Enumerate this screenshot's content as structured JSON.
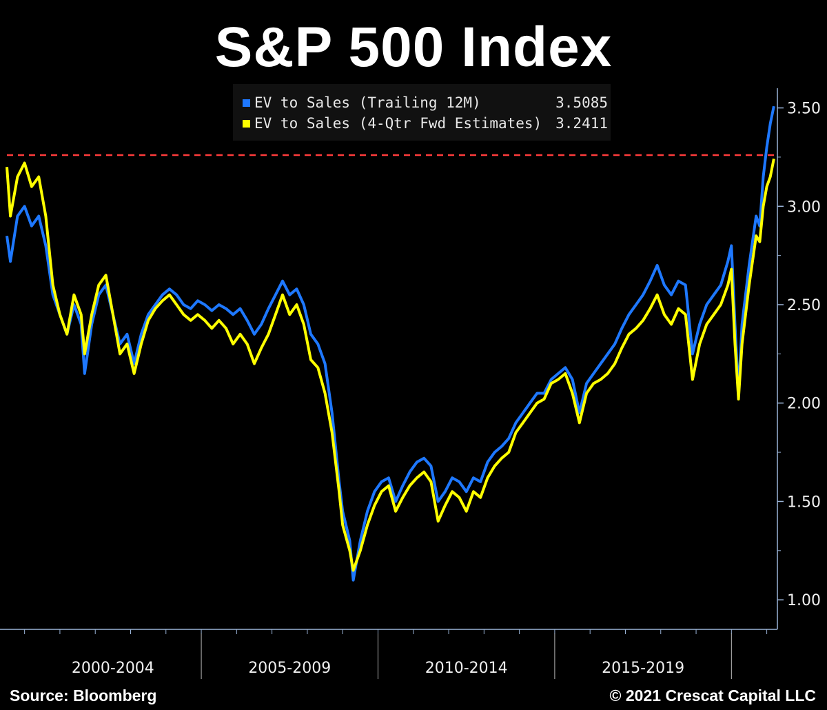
{
  "title": "S&P 500 Index",
  "legend": [
    {
      "label": "EV to Sales (Trailing 12M)",
      "value": "3.5085",
      "color": "#1e78ff"
    },
    {
      "label": "EV to Sales (4-Qtr Fwd Estimates)",
      "value": "3.2411",
      "color": "#ffff00"
    }
  ],
  "footer": {
    "source": "Source: Bloomberg",
    "copyright": "© 2021 Crescat Capital LLC"
  },
  "chart_data": {
    "type": "line",
    "title": "S&P 500 Index",
    "x_period_labels": [
      "2000-2004",
      "2005-2009",
      "2010-2014",
      "2015-2019"
    ],
    "y_ticks": [
      "1.00",
      "1.50",
      "2.00",
      "2.50",
      "3.00",
      "3.50"
    ],
    "ylim": [
      0.85,
      3.6
    ],
    "xlim": [
      1999.5,
      2021.3
    ],
    "reference_line": {
      "y": 3.26,
      "color": "#ff3b3b",
      "style": "dashed"
    },
    "series": [
      {
        "name": "EV to Sales (Trailing 12M)",
        "color": "#1e78ff",
        "points": [
          [
            1999.5,
            2.85
          ],
          [
            1999.6,
            2.72
          ],
          [
            1999.8,
            2.95
          ],
          [
            2000.0,
            3.0
          ],
          [
            2000.2,
            2.9
          ],
          [
            2000.4,
            2.95
          ],
          [
            2000.6,
            2.8
          ],
          [
            2000.8,
            2.55
          ],
          [
            2001.0,
            2.45
          ],
          [
            2001.2,
            2.35
          ],
          [
            2001.4,
            2.5
          ],
          [
            2001.6,
            2.4
          ],
          [
            2001.7,
            2.15
          ],
          [
            2001.9,
            2.4
          ],
          [
            2002.1,
            2.55
          ],
          [
            2002.3,
            2.6
          ],
          [
            2002.5,
            2.45
          ],
          [
            2002.7,
            2.3
          ],
          [
            2002.9,
            2.35
          ],
          [
            2003.1,
            2.2
          ],
          [
            2003.3,
            2.35
          ],
          [
            2003.5,
            2.45
          ],
          [
            2003.7,
            2.5
          ],
          [
            2003.9,
            2.55
          ],
          [
            2004.1,
            2.58
          ],
          [
            2004.3,
            2.55
          ],
          [
            2004.5,
            2.5
          ],
          [
            2004.7,
            2.48
          ],
          [
            2004.9,
            2.52
          ],
          [
            2005.1,
            2.5
          ],
          [
            2005.3,
            2.47
          ],
          [
            2005.5,
            2.5
          ],
          [
            2005.7,
            2.48
          ],
          [
            2005.9,
            2.45
          ],
          [
            2006.1,
            2.48
          ],
          [
            2006.3,
            2.42
          ],
          [
            2006.5,
            2.35
          ],
          [
            2006.7,
            2.4
          ],
          [
            2006.9,
            2.48
          ],
          [
            2007.1,
            2.55
          ],
          [
            2007.3,
            2.62
          ],
          [
            2007.5,
            2.55
          ],
          [
            2007.7,
            2.58
          ],
          [
            2007.9,
            2.5
          ],
          [
            2008.1,
            2.35
          ],
          [
            2008.3,
            2.3
          ],
          [
            2008.5,
            2.2
          ],
          [
            2008.7,
            1.95
          ],
          [
            2008.9,
            1.6
          ],
          [
            2009.0,
            1.45
          ],
          [
            2009.2,
            1.3
          ],
          [
            2009.3,
            1.1
          ],
          [
            2009.5,
            1.3
          ],
          [
            2009.7,
            1.45
          ],
          [
            2009.9,
            1.55
          ],
          [
            2010.1,
            1.6
          ],
          [
            2010.3,
            1.62
          ],
          [
            2010.5,
            1.5
          ],
          [
            2010.7,
            1.58
          ],
          [
            2010.9,
            1.65
          ],
          [
            2011.1,
            1.7
          ],
          [
            2011.3,
            1.72
          ],
          [
            2011.5,
            1.68
          ],
          [
            2011.7,
            1.5
          ],
          [
            2011.9,
            1.55
          ],
          [
            2012.1,
            1.62
          ],
          [
            2012.3,
            1.6
          ],
          [
            2012.5,
            1.55
          ],
          [
            2012.7,
            1.62
          ],
          [
            2012.9,
            1.6
          ],
          [
            2013.1,
            1.7
          ],
          [
            2013.3,
            1.75
          ],
          [
            2013.5,
            1.78
          ],
          [
            2013.7,
            1.82
          ],
          [
            2013.9,
            1.9
          ],
          [
            2014.1,
            1.95
          ],
          [
            2014.3,
            2.0
          ],
          [
            2014.5,
            2.05
          ],
          [
            2014.7,
            2.05
          ],
          [
            2014.9,
            2.12
          ],
          [
            2015.1,
            2.15
          ],
          [
            2015.3,
            2.18
          ],
          [
            2015.5,
            2.12
          ],
          [
            2015.7,
            1.95
          ],
          [
            2015.9,
            2.1
          ],
          [
            2016.1,
            2.15
          ],
          [
            2016.3,
            2.2
          ],
          [
            2016.5,
            2.25
          ],
          [
            2016.7,
            2.3
          ],
          [
            2016.9,
            2.38
          ],
          [
            2017.1,
            2.45
          ],
          [
            2017.3,
            2.5
          ],
          [
            2017.5,
            2.55
          ],
          [
            2017.7,
            2.62
          ],
          [
            2017.9,
            2.7
          ],
          [
            2018.1,
            2.6
          ],
          [
            2018.3,
            2.55
          ],
          [
            2018.5,
            2.62
          ],
          [
            2018.7,
            2.6
          ],
          [
            2018.9,
            2.25
          ],
          [
            2019.1,
            2.4
          ],
          [
            2019.3,
            2.5
          ],
          [
            2019.5,
            2.55
          ],
          [
            2019.7,
            2.6
          ],
          [
            2019.9,
            2.72
          ],
          [
            2020.0,
            2.8
          ],
          [
            2020.1,
            2.4
          ],
          [
            2020.2,
            2.05
          ],
          [
            2020.3,
            2.4
          ],
          [
            2020.5,
            2.7
          ],
          [
            2020.7,
            2.95
          ],
          [
            2020.8,
            2.9
          ],
          [
            2020.9,
            3.15
          ],
          [
            2021.0,
            3.3
          ],
          [
            2021.1,
            3.42
          ],
          [
            2021.2,
            3.5085
          ]
        ]
      },
      {
        "name": "EV to Sales (4-Qtr Fwd Estimates)",
        "color": "#ffff00",
        "points": [
          [
            1999.5,
            3.2
          ],
          [
            1999.6,
            2.95
          ],
          [
            1999.8,
            3.15
          ],
          [
            2000.0,
            3.22
          ],
          [
            2000.2,
            3.1
          ],
          [
            2000.4,
            3.15
          ],
          [
            2000.6,
            2.95
          ],
          [
            2000.8,
            2.6
          ],
          [
            2001.0,
            2.45
          ],
          [
            2001.2,
            2.35
          ],
          [
            2001.4,
            2.55
          ],
          [
            2001.6,
            2.45
          ],
          [
            2001.7,
            2.25
          ],
          [
            2001.9,
            2.45
          ],
          [
            2002.1,
            2.6
          ],
          [
            2002.3,
            2.65
          ],
          [
            2002.5,
            2.45
          ],
          [
            2002.7,
            2.25
          ],
          [
            2002.9,
            2.3
          ],
          [
            2003.1,
            2.15
          ],
          [
            2003.3,
            2.3
          ],
          [
            2003.5,
            2.42
          ],
          [
            2003.7,
            2.48
          ],
          [
            2003.9,
            2.52
          ],
          [
            2004.1,
            2.55
          ],
          [
            2004.3,
            2.5
          ],
          [
            2004.5,
            2.45
          ],
          [
            2004.7,
            2.42
          ],
          [
            2004.9,
            2.45
          ],
          [
            2005.1,
            2.42
          ],
          [
            2005.3,
            2.38
          ],
          [
            2005.5,
            2.42
          ],
          [
            2005.7,
            2.38
          ],
          [
            2005.9,
            2.3
          ],
          [
            2006.1,
            2.35
          ],
          [
            2006.3,
            2.3
          ],
          [
            2006.5,
            2.2
          ],
          [
            2006.7,
            2.28
          ],
          [
            2006.9,
            2.35
          ],
          [
            2007.1,
            2.45
          ],
          [
            2007.3,
            2.55
          ],
          [
            2007.5,
            2.45
          ],
          [
            2007.7,
            2.5
          ],
          [
            2007.9,
            2.4
          ],
          [
            2008.1,
            2.22
          ],
          [
            2008.3,
            2.18
          ],
          [
            2008.5,
            2.05
          ],
          [
            2008.7,
            1.85
          ],
          [
            2008.9,
            1.55
          ],
          [
            2009.0,
            1.38
          ],
          [
            2009.2,
            1.25
          ],
          [
            2009.3,
            1.15
          ],
          [
            2009.5,
            1.25
          ],
          [
            2009.7,
            1.38
          ],
          [
            2009.9,
            1.48
          ],
          [
            2010.1,
            1.55
          ],
          [
            2010.3,
            1.58
          ],
          [
            2010.5,
            1.45
          ],
          [
            2010.7,
            1.52
          ],
          [
            2010.9,
            1.58
          ],
          [
            2011.1,
            1.62
          ],
          [
            2011.3,
            1.65
          ],
          [
            2011.5,
            1.6
          ],
          [
            2011.7,
            1.4
          ],
          [
            2011.9,
            1.48
          ],
          [
            2012.1,
            1.55
          ],
          [
            2012.3,
            1.52
          ],
          [
            2012.5,
            1.45
          ],
          [
            2012.7,
            1.55
          ],
          [
            2012.9,
            1.52
          ],
          [
            2013.1,
            1.62
          ],
          [
            2013.3,
            1.68
          ],
          [
            2013.5,
            1.72
          ],
          [
            2013.7,
            1.75
          ],
          [
            2013.9,
            1.85
          ],
          [
            2014.1,
            1.9
          ],
          [
            2014.3,
            1.95
          ],
          [
            2014.5,
            2.0
          ],
          [
            2014.7,
            2.02
          ],
          [
            2014.9,
            2.1
          ],
          [
            2015.1,
            2.12
          ],
          [
            2015.3,
            2.15
          ],
          [
            2015.5,
            2.05
          ],
          [
            2015.7,
            1.9
          ],
          [
            2015.9,
            2.05
          ],
          [
            2016.1,
            2.1
          ],
          [
            2016.3,
            2.12
          ],
          [
            2016.5,
            2.15
          ],
          [
            2016.7,
            2.2
          ],
          [
            2016.9,
            2.28
          ],
          [
            2017.1,
            2.35
          ],
          [
            2017.3,
            2.38
          ],
          [
            2017.5,
            2.42
          ],
          [
            2017.7,
            2.48
          ],
          [
            2017.9,
            2.55
          ],
          [
            2018.1,
            2.45
          ],
          [
            2018.3,
            2.4
          ],
          [
            2018.5,
            2.48
          ],
          [
            2018.7,
            2.45
          ],
          [
            2018.9,
            2.12
          ],
          [
            2019.1,
            2.3
          ],
          [
            2019.3,
            2.4
          ],
          [
            2019.5,
            2.45
          ],
          [
            2019.7,
            2.5
          ],
          [
            2019.9,
            2.6
          ],
          [
            2020.0,
            2.68
          ],
          [
            2020.1,
            2.3
          ],
          [
            2020.2,
            2.02
          ],
          [
            2020.3,
            2.3
          ],
          [
            2020.5,
            2.6
          ],
          [
            2020.7,
            2.85
          ],
          [
            2020.8,
            2.82
          ],
          [
            2020.9,
            3.0
          ],
          [
            2021.0,
            3.1
          ],
          [
            2021.1,
            3.15
          ],
          [
            2021.2,
            3.2411
          ]
        ]
      }
    ]
  }
}
